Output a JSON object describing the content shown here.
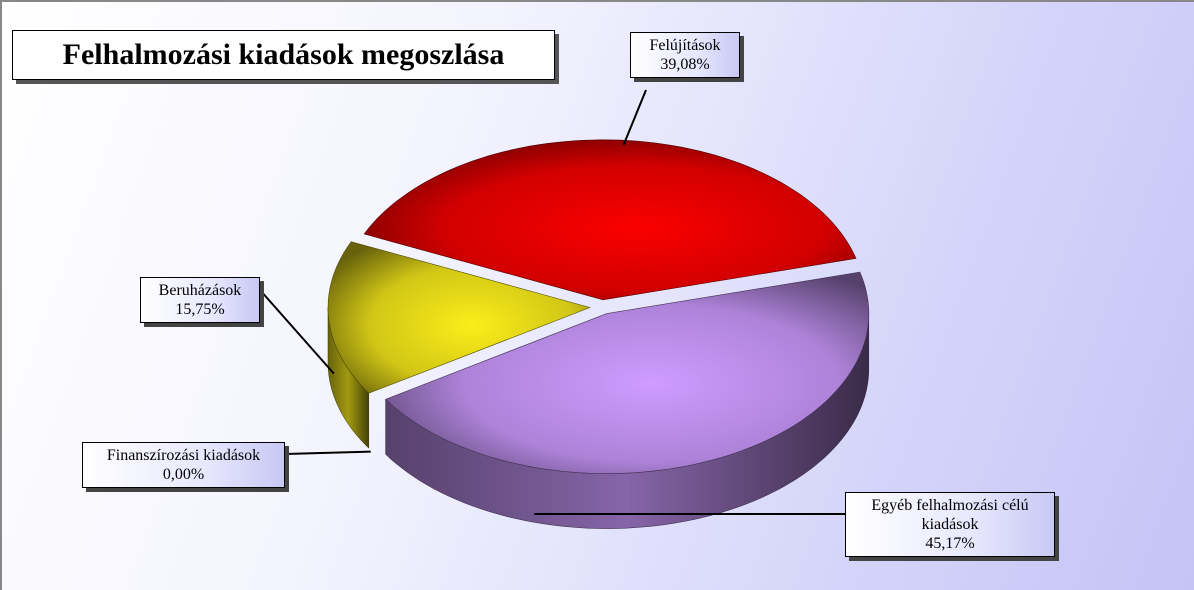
{
  "chart_data": {
    "type": "pie",
    "title": "Felhalmozási kiadások megoszlása",
    "categories": [
      "Felújítások",
      "Egyéb felhalmozási célú kiadások",
      "Finanszírozási kiadások",
      "Beruházások"
    ],
    "values": [
      39.08,
      45.17,
      0.0,
      15.75
    ],
    "value_labels": [
      "39,08%",
      "45,17%",
      "0,00%",
      "15,75%"
    ],
    "colors": [
      "#e80000",
      "#c090f0",
      "#30305a",
      "#e8dc18"
    ]
  }
}
